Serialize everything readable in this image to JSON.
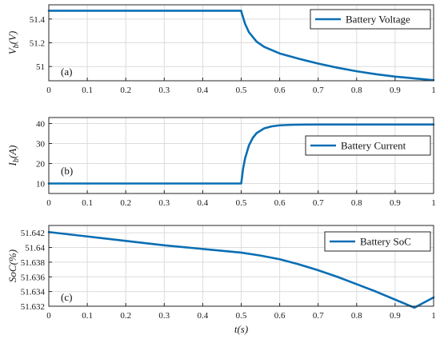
{
  "chart_data": [
    {
      "type": "line",
      "panel_label": "(a)",
      "ylabel": "V_b(V)",
      "ylabel_base": "V",
      "ylabel_sub": "b",
      "ylabel_unit": "(V)",
      "xlim": [
        0,
        1
      ],
      "ylim": [
        50.88,
        51.52
      ],
      "xticks": [
        "0",
        "0.1",
        "0.2",
        "0.3",
        "0.4",
        "0.5",
        "0.6",
        "0.7",
        "0.8",
        "0.9",
        "1"
      ],
      "yticks": [
        "51",
        "51.2",
        "51.4"
      ],
      "ytick_values": [
        51,
        51.2,
        51.4
      ],
      "legend_position": "top-right",
      "grid": true,
      "series": [
        {
          "name": "Battery Voltage",
          "color": "#0a6eb4",
          "x": [
            0,
            0.5,
            0.5,
            0.51,
            0.52,
            0.54,
            0.56,
            0.6,
            0.65,
            0.7,
            0.75,
            0.8,
            0.85,
            0.9,
            0.95,
            1.0
          ],
          "y": [
            51.47,
            51.47,
            51.465,
            51.36,
            51.29,
            51.21,
            51.165,
            51.11,
            51.065,
            51.025,
            50.99,
            50.96,
            50.935,
            50.915,
            50.9,
            50.885
          ]
        }
      ]
    },
    {
      "type": "line",
      "panel_label": "(b)",
      "ylabel": "I_b(A)",
      "ylabel_base": "I",
      "ylabel_sub": "b",
      "ylabel_unit": "(A)",
      "xlim": [
        0,
        1
      ],
      "ylim": [
        5,
        43
      ],
      "xticks": [
        "0",
        "0.1",
        "0.2",
        "0.3",
        "0.4",
        "0.5",
        "0.6",
        "0.7",
        "0.8",
        "0.9",
        "1"
      ],
      "yticks": [
        "10",
        "20",
        "30",
        "40"
      ],
      "ytick_values": [
        10,
        20,
        30,
        40
      ],
      "legend_position": "right",
      "grid": true,
      "series": [
        {
          "name": "Battery Current",
          "color": "#0a6eb4",
          "x": [
            0,
            0.5,
            0.5,
            0.505,
            0.51,
            0.52,
            0.53,
            0.54,
            0.56,
            0.58,
            0.6,
            0.63,
            0.66,
            0.7,
            0.8,
            0.9,
            1.0
          ],
          "y": [
            10,
            10,
            10,
            17.5,
            22.5,
            29,
            32.8,
            35.2,
            37.6,
            38.6,
            39.1,
            39.35,
            39.45,
            39.5,
            39.5,
            39.5,
            39.5
          ]
        }
      ]
    },
    {
      "type": "line",
      "panel_label": "(c)",
      "ylabel": "SoC(%)",
      "xlabel": "t(s)",
      "xlim": [
        0,
        1
      ],
      "ylim": [
        51.632,
        51.643
      ],
      "xticks": [
        "0",
        "0.1",
        "0.2",
        "0.3",
        "0.4",
        "0.5",
        "0.6",
        "0.7",
        "0.8",
        "0.9",
        "1"
      ],
      "yticks": [
        "51.632",
        "51.634",
        "51.636",
        "51.638",
        "51.64",
        "51.642"
      ],
      "ytick_values": [
        51.632,
        51.634,
        51.636,
        51.638,
        51.64,
        51.642
      ],
      "legend_position": "top-right",
      "grid": true,
      "series": [
        {
          "name": "Battery SoC",
          "color": "#0a6eb4",
          "x": [
            0,
            0.1,
            0.2,
            0.3,
            0.4,
            0.5,
            0.55,
            0.6,
            0.65,
            0.7,
            0.75,
            0.8,
            0.85,
            0.9,
            0.95,
            1.0
          ],
          "y": [
            51.6421,
            51.6415,
            51.6409,
            51.6403,
            51.6398,
            51.6393,
            51.6389,
            51.6384,
            51.6377,
            51.6369,
            51.636,
            51.635,
            51.634,
            51.6329,
            51.6318,
            51.6332
          ]
        }
      ]
    }
  ]
}
